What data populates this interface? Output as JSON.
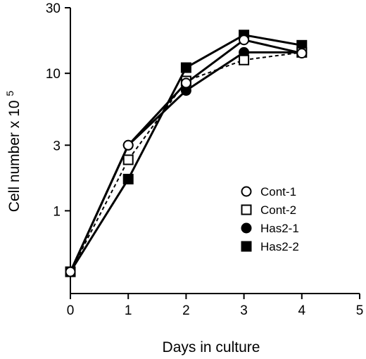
{
  "chart_data": {
    "type": "line",
    "xlabel": "Days in culture",
    "ylabel": "Cell number x 10",
    "ylabel_superscript": "5",
    "yscale": "log",
    "xlim": [
      0,
      5
    ],
    "ylim": [
      0.25,
      30
    ],
    "x_ticks": [
      0,
      1,
      2,
      3,
      4,
      5
    ],
    "x_tick_labels": [
      "0",
      "1",
      "2",
      "3",
      "4",
      "5"
    ],
    "y_ticks": [
      1,
      3,
      10,
      30
    ],
    "y_tick_labels": [
      "1",
      "3",
      "10",
      "30"
    ],
    "grid": false,
    "legend_position": "bottom-right",
    "x": [
      0,
      1,
      2,
      3,
      4
    ],
    "series": [
      {
        "name": "Cont-1",
        "marker": "circle-open",
        "line": "solid",
        "values": [
          0.36,
          3.0,
          8.5,
          17.5,
          14.0
        ]
      },
      {
        "name": "Cont-2",
        "marker": "square-open",
        "line": "dashed",
        "values": [
          0.36,
          2.35,
          8.8,
          12.5,
          14.2
        ]
      },
      {
        "name": "Has2-1",
        "marker": "circle-filled",
        "line": "solid",
        "values": [
          0.36,
          3.0,
          7.5,
          14.2,
          14.2
        ]
      },
      {
        "name": "Has2-2",
        "marker": "square-filled",
        "line": "solid",
        "values": [
          0.36,
          1.7,
          11.0,
          19.0,
          16.0
        ]
      }
    ]
  }
}
